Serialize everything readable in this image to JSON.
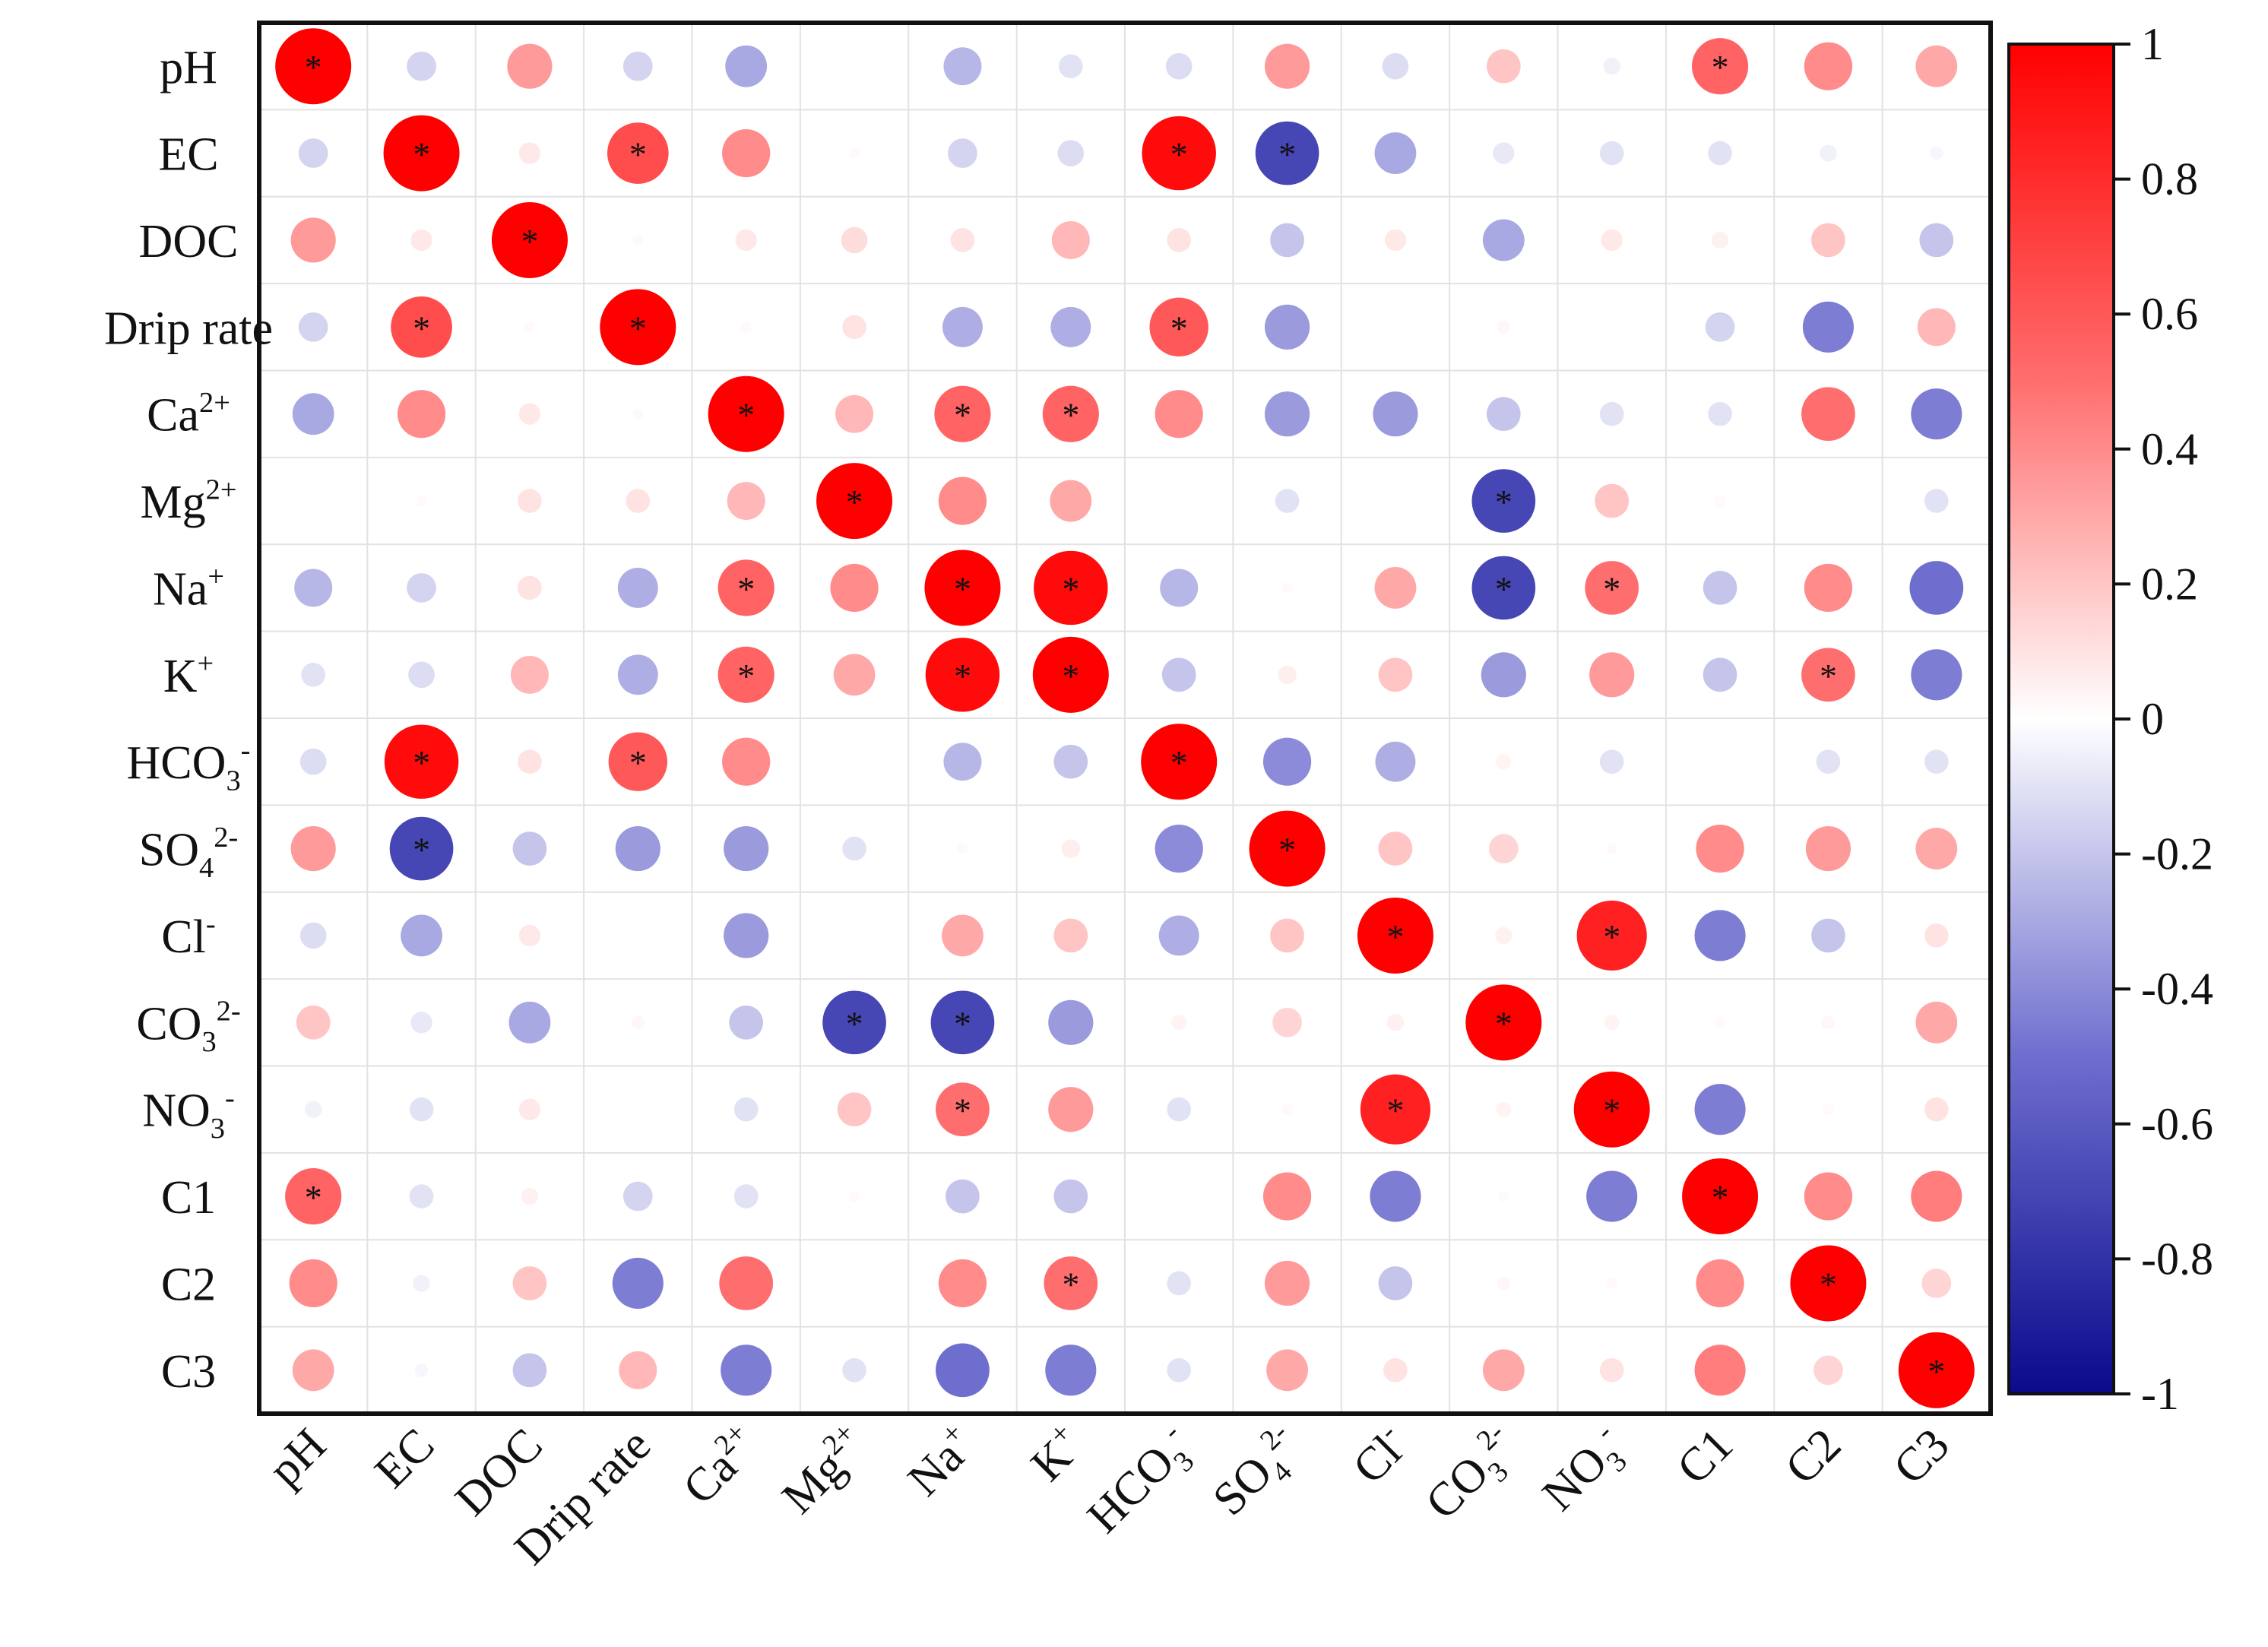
{
  "chart_data": {
    "type": "heatmap",
    "title": "",
    "variables": [
      {
        "base": "pH"
      },
      {
        "base": "EC"
      },
      {
        "base": "DOC"
      },
      {
        "base": "Drip rate"
      },
      {
        "base": "Ca",
        "sup": "2+"
      },
      {
        "base": "Mg",
        "sup": "2+"
      },
      {
        "base": "Na",
        "sup": "+"
      },
      {
        "base": "K",
        "sup": "+"
      },
      {
        "base": "HCO",
        "sub": "3",
        "sup": "-"
      },
      {
        "base": "SO",
        "sub": "4",
        "sup": "2-"
      },
      {
        "base": "Cl",
        "sup": "-"
      },
      {
        "base": "CO",
        "sub": "3",
        "sup": "2-"
      },
      {
        "base": "NO",
        "sub": "3",
        "sup": "-"
      },
      {
        "base": "C1"
      },
      {
        "base": "C2"
      },
      {
        "base": "C3"
      }
    ],
    "matrix": [
      [
        1,
        -0.15,
        0.35,
        -0.15,
        -0.3,
        0,
        -0.25,
        -0.1,
        -0.12,
        0.35,
        -0.12,
        0.2,
        -0.05,
        0.55,
        0.4,
        0.3
      ],
      [
        -0.15,
        1,
        0.08,
        0.65,
        0.4,
        0.02,
        -0.15,
        -0.12,
        0.95,
        -0.7,
        -0.3,
        -0.08,
        -0.1,
        -0.1,
        -0.05,
        -0.03
      ],
      [
        0.35,
        0.08,
        1,
        0.02,
        0.08,
        0.12,
        0.1,
        0.25,
        0.1,
        -0.2,
        0.08,
        -0.3,
        0.08,
        0.05,
        0.2,
        -0.2
      ],
      [
        -0.15,
        0.65,
        0.02,
        1,
        0.02,
        0.1,
        -0.28,
        -0.28,
        0.6,
        -0.35,
        0,
        0.03,
        0,
        -0.15,
        -0.45,
        0.25
      ],
      [
        -0.3,
        0.4,
        0.08,
        0.02,
        1,
        0.25,
        0.55,
        0.55,
        0.4,
        -0.35,
        -0.35,
        -0.2,
        -0.1,
        -0.1,
        0.5,
        -0.45
      ],
      [
        0,
        0.02,
        0.1,
        0.1,
        0.25,
        1,
        0.4,
        0.3,
        0,
        -0.1,
        0,
        -0.7,
        0.2,
        0.02,
        0,
        -0.1
      ],
      [
        -0.25,
        -0.15,
        0.1,
        -0.28,
        0.55,
        0.4,
        1,
        0.95,
        -0.25,
        0.02,
        0.3,
        -0.7,
        0.5,
        -0.2,
        0.4,
        -0.5
      ],
      [
        -0.1,
        -0.12,
        0.25,
        -0.28,
        0.55,
        0.3,
        0.95,
        1,
        -0.2,
        0.06,
        0.2,
        -0.35,
        0.35,
        -0.2,
        0.5,
        -0.45
      ],
      [
        -0.12,
        0.95,
        0.1,
        0.6,
        0.4,
        0,
        -0.25,
        -0.2,
        1,
        -0.4,
        -0.28,
        0.04,
        -0.1,
        0,
        -0.1,
        -0.1
      ],
      [
        0.35,
        -0.7,
        -0.2,
        -0.35,
        -0.35,
        -0.1,
        0.02,
        0.06,
        -0.4,
        1,
        0.2,
        0.15,
        0.02,
        0.4,
        0.35,
        0.3
      ],
      [
        -0.12,
        -0.3,
        0.08,
        0,
        -0.35,
        0,
        0.3,
        0.2,
        -0.28,
        0.2,
        1,
        0.05,
        0.85,
        -0.45,
        -0.2,
        0.1
      ],
      [
        0.2,
        -0.08,
        -0.3,
        0.03,
        -0.2,
        -0.7,
        -0.7,
        -0.35,
        0.04,
        0.15,
        0.05,
        1,
        0.04,
        0.02,
        0.03,
        0.3
      ],
      [
        -0.05,
        -0.1,
        0.08,
        0,
        -0.1,
        0.2,
        0.5,
        0.35,
        -0.1,
        0.02,
        0.85,
        0.04,
        1,
        -0.45,
        0.02,
        0.1
      ],
      [
        0.55,
        -0.1,
        0.05,
        -0.15,
        -0.1,
        0.02,
        -0.2,
        -0.2,
        0,
        0.4,
        -0.45,
        0.02,
        -0.45,
        1,
        0.4,
        0.45
      ],
      [
        0.4,
        -0.05,
        0.2,
        -0.45,
        0.5,
        0,
        0.4,
        0.5,
        -0.1,
        0.35,
        -0.2,
        0.03,
        0.02,
        0.4,
        1,
        0.15
      ],
      [
        0.3,
        -0.03,
        -0.2,
        0.25,
        -0.45,
        -0.1,
        -0.5,
        -0.45,
        -0.1,
        0.3,
        0.1,
        0.3,
        0.1,
        0.45,
        0.15,
        1
      ]
    ],
    "significant": [
      [
        0,
        0
      ],
      [
        0,
        13
      ],
      [
        1,
        1
      ],
      [
        1,
        3
      ],
      [
        1,
        8
      ],
      [
        1,
        9
      ],
      [
        2,
        2
      ],
      [
        3,
        1
      ],
      [
        3,
        3
      ],
      [
        3,
        8
      ],
      [
        4,
        4
      ],
      [
        4,
        6
      ],
      [
        4,
        7
      ],
      [
        5,
        5
      ],
      [
        5,
        11
      ],
      [
        6,
        4
      ],
      [
        6,
        6
      ],
      [
        6,
        7
      ],
      [
        6,
        11
      ],
      [
        6,
        12
      ],
      [
        7,
        4
      ],
      [
        7,
        6
      ],
      [
        7,
        7
      ],
      [
        7,
        14
      ],
      [
        8,
        1
      ],
      [
        8,
        3
      ],
      [
        8,
        8
      ],
      [
        9,
        1
      ],
      [
        9,
        9
      ],
      [
        10,
        10
      ],
      [
        10,
        12
      ],
      [
        11,
        5
      ],
      [
        11,
        6
      ],
      [
        11,
        11
      ],
      [
        12,
        6
      ],
      [
        12,
        10
      ],
      [
        12,
        12
      ],
      [
        13,
        0
      ],
      [
        13,
        13
      ],
      [
        14,
        7
      ],
      [
        14,
        14
      ],
      [
        15,
        15
      ]
    ],
    "significance_marker": "*",
    "colorbar": {
      "range": [
        -1,
        1
      ],
      "ticks": [
        "1",
        "0.8",
        "0.6",
        "0.4",
        "0.2",
        "0",
        "-0.2",
        "-0.4",
        "-0.6",
        "-0.8",
        "-1"
      ],
      "colors": {
        "negative": "#0a0a8c",
        "neutral": "#ffffff",
        "positive": "#ff0000",
        "mid_negative": "#6e6ecf",
        "mid_positive": "#ff6e6e"
      }
    },
    "xlabel": "",
    "ylabel": ""
  }
}
